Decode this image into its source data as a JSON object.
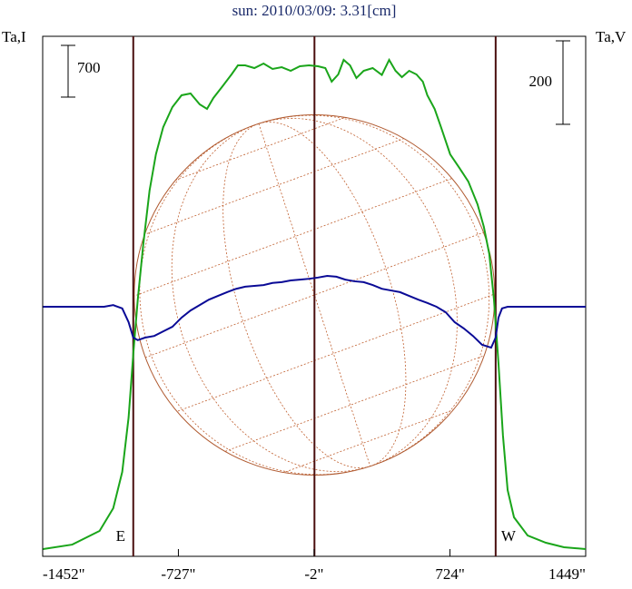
{
  "chart_data": {
    "type": "line",
    "title": "sun: 2010/03/09: 3.31[cm]",
    "y_label": "Ta,I",
    "y2_label": "Ta,V",
    "xlim": [
      -1452,
      1449
    ],
    "xticks": [
      {
        "value": -1452,
        "label": "-1452\""
      },
      {
        "value": -727,
        "label": "-727\""
      },
      {
        "value": -2,
        "label": "-2\""
      },
      {
        "value": 724,
        "label": "724\""
      },
      {
        "value": 1449,
        "label": "1449\""
      }
    ],
    "ylim": [
      -98,
      6941
    ],
    "y2lim": [
      -598,
      648
    ],
    "y_scale_bar": 700,
    "y2_scale_bar": 200,
    "limb_lines": [
      {
        "x": -968,
        "label": "E"
      },
      {
        "x": 968,
        "label": "W"
      }
    ],
    "center_line": 0,
    "disk_radius": 963,
    "series": [
      {
        "name": "Ta,I",
        "color": "#1aa51a",
        "x": [
          -1450,
          -1294,
          -1148,
          -1075,
          -1027,
          -993,
          -968,
          -944,
          -915,
          -881,
          -847,
          -808,
          -759,
          -710,
          -662,
          -613,
          -574,
          -540,
          -491,
          -443,
          -409,
          -370,
          -321,
          -272,
          -224,
          -175,
          -127,
          -78,
          -29,
          19,
          58,
          92,
          127,
          156,
          190,
          224,
          263,
          311,
          360,
          399,
          433,
          467,
          506,
          545,
          579,
          603,
          642,
          676,
          725,
          774,
          822,
          871,
          905,
          934,
          959,
          983,
          1007,
          1032,
          1066,
          1139,
          1236,
          1333,
          1449
        ],
        "values": [
          0,
          61,
          246,
          553,
          1044,
          1781,
          2641,
          3378,
          4115,
          4853,
          5344,
          5712,
          5983,
          6143,
          6167,
          6020,
          5958,
          6106,
          6265,
          6425,
          6548,
          6548,
          6511,
          6572,
          6499,
          6523,
          6474,
          6536,
          6548,
          6536,
          6511,
          6327,
          6425,
          6622,
          6548,
          6376,
          6474,
          6511,
          6418,
          6622,
          6474,
          6388,
          6474,
          6425,
          6327,
          6143,
          5958,
          5712,
          5344,
          5160,
          4975,
          4668,
          4361,
          3993,
          3378,
          2518,
          1536,
          799,
          430,
          184,
          86,
          25,
          0
        ]
      },
      {
        "name": "Ta,V",
        "color": "#0a0a96",
        "axis": "y2",
        "x": [
          -1450,
          -1124,
          -1075,
          -1027,
          -993,
          -968,
          -944,
          -905,
          -856,
          -808,
          -759,
          -710,
          -662,
          -613,
          -564,
          -516,
          -467,
          -418,
          -370,
          -321,
          -272,
          -224,
          -175,
          -127,
          -78,
          -29,
          19,
          68,
          117,
          165,
          214,
          263,
          311,
          360,
          409,
          457,
          506,
          555,
          603,
          652,
          701,
          749,
          798,
          847,
          895,
          944,
          968,
          983,
          1002,
          1032,
          1090,
          1236,
          1449
        ],
        "values": [
          0,
          0,
          4,
          -4,
          -37,
          -74,
          -80,
          -74,
          -70,
          -59,
          -48,
          -26,
          -9,
          4,
          17,
          26,
          35,
          43,
          48,
          50,
          52,
          57,
          59,
          63,
          65,
          67,
          70,
          74,
          72,
          65,
          61,
          59,
          52,
          43,
          39,
          35,
          26,
          17,
          9,
          0,
          -13,
          -37,
          -52,
          -70,
          -91,
          -98,
          -74,
          -26,
          -4,
          0,
          0,
          0,
          0
        ]
      }
    ]
  }
}
